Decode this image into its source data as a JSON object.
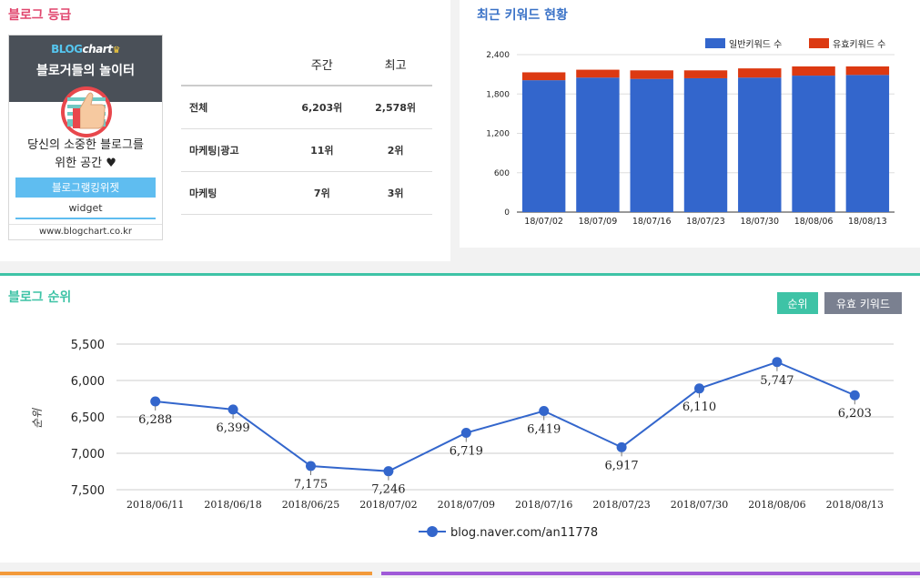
{
  "grade": {
    "title": "블로그 등급",
    "widget": {
      "logo_blog": "BLOG",
      "logo_chart": "chart",
      "tagline": "블로거들의 놀이터",
      "desc_line1": "당신의 소중한 블로그를",
      "desc_line2": "위한 공간 ♥",
      "button": "블로그랭킹위젯",
      "sub": "widget",
      "url": "www.blogchart.co.kr"
    },
    "table": {
      "headers": [
        "",
        "주간",
        "최고"
      ],
      "rows": [
        {
          "name": "전체",
          "weekly": "6,203위",
          "best": "2,578위"
        },
        {
          "name": "마케팅|광고",
          "weekly": "11위",
          "best": "2위"
        },
        {
          "name": "마케팅",
          "weekly": "7위",
          "best": "3위"
        }
      ]
    }
  },
  "keywords": {
    "title": "최근 키워드 현황",
    "legend_general": "일반키워드 수",
    "legend_valid": "유효키워드 수",
    "color_general": "#3366cc",
    "color_valid": "#dc3912"
  },
  "ranking": {
    "title": "블로그 순위",
    "btn_rank": "순위",
    "btn_keyword": "유효 키워드",
    "ylabel": "순위",
    "legend": "blog.naver.com/an11778",
    "line_color": "#3366cc"
  },
  "chart_data": [
    {
      "type": "bar",
      "title": "최근 키워드 현황",
      "stacked": true,
      "categories": [
        "18/07/02",
        "18/07/09",
        "18/07/16",
        "18/07/23",
        "18/07/30",
        "18/08/06",
        "18/08/13"
      ],
      "series": [
        {
          "name": "일반키워드 수",
          "values": [
            2010,
            2050,
            2030,
            2040,
            2050,
            2080,
            2090
          ]
        },
        {
          "name": "유효키워드 수",
          "values": [
            120,
            120,
            130,
            120,
            140,
            140,
            130
          ]
        }
      ],
      "ylim": [
        0,
        2400
      ],
      "yticks": [
        "0",
        "600",
        "1,200",
        "1,800",
        "2,400"
      ],
      "legend": "top-right"
    },
    {
      "type": "line",
      "title": "블로그 순위",
      "categories": [
        "2018/06/11",
        "2018/06/18",
        "2018/06/25",
        "2018/07/02",
        "2018/07/09",
        "2018/07/16",
        "2018/07/23",
        "2018/07/30",
        "2018/08/06",
        "2018/08/13"
      ],
      "series": [
        {
          "name": "blog.naver.com/an11778",
          "values": [
            6288,
            6399,
            7175,
            7246,
            6719,
            6419,
            6917,
            6110,
            5747,
            6203
          ],
          "labels": [
            "6,288",
            "6,399",
            "7,175",
            "7,246",
            "6,719",
            "6,419",
            "6,917",
            "6,110",
            "5,747",
            "6,203"
          ]
        }
      ],
      "ylim": [
        5500,
        7500
      ],
      "yreversed": true,
      "yticks": [
        "5,500",
        "6,000",
        "6,500",
        "7,000",
        "7,500"
      ],
      "ylabel": "순위",
      "legend": "bottom"
    }
  ]
}
